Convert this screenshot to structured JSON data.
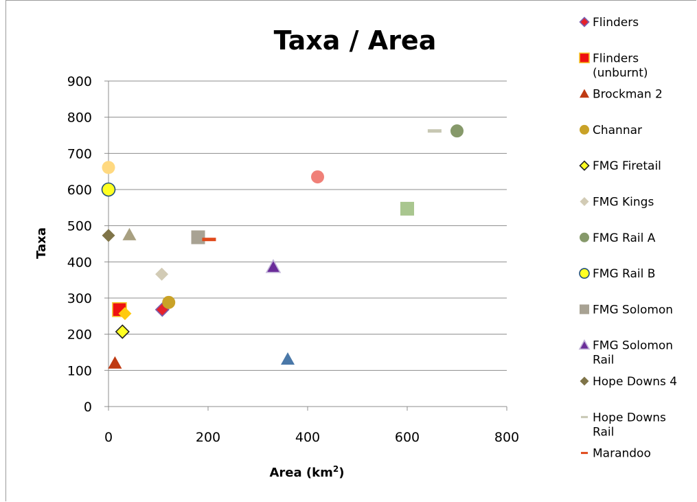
{
  "chart_data": {
    "type": "scatter",
    "title": "Taxa / Area",
    "xlabel": "Area (km",
    "xlabel_sup": "2",
    "xlabel_end": ")",
    "ylabel": "Taxa",
    "xlim": [
      0,
      800
    ],
    "ylim": [
      0,
      900
    ],
    "x_ticks": [
      "0",
      "200",
      "400",
      "600",
      "800"
    ],
    "y_ticks": [
      "0",
      "100",
      "200",
      "300",
      "400",
      "500",
      "600",
      "700",
      "800",
      "900"
    ],
    "grid": "horizontal",
    "legend_position": "right",
    "legend_lines": [
      [
        "Flinders"
      ],
      [
        "Flinders",
        "(unburnt)"
      ],
      [
        "Brockman 2"
      ],
      [
        "Channar"
      ],
      [
        "FMG Firetail"
      ],
      [
        "FMG Kings"
      ],
      [
        "FMG Rail A"
      ],
      [
        "FMG Rail B"
      ],
      [
        "FMG Solomon"
      ],
      [
        "FMG Solomon",
        "Rail"
      ],
      [
        "Hope Downs 4"
      ],
      [
        "Hope Downs",
        "Rail"
      ],
      [
        "Marandoo"
      ]
    ],
    "series": [
      {
        "name": "Flinders",
        "marker": "diamond",
        "color": "#e5222b",
        "stroke": "#7a5fb0",
        "points": [
          [
            108,
            268
          ]
        ]
      },
      {
        "name": "Flinders (unburnt)",
        "marker": "square",
        "color": "#ee1111",
        "stroke": "#f5c42a",
        "points": [
          [
            22,
            268
          ]
        ]
      },
      {
        "name": "Brockman 2",
        "marker": "triangle",
        "color": "#bf3a12",
        "stroke": "none",
        "points": [
          [
            13,
            120
          ]
        ]
      },
      {
        "name": "Channar",
        "marker": "circle",
        "color": "#c9a227",
        "stroke": "none",
        "points": [
          [
            121,
            288
          ]
        ]
      },
      {
        "name": "FMG Firetail",
        "marker": "diamond",
        "color": "#ffff22",
        "stroke": "#222222",
        "points": [
          [
            28,
            207
          ]
        ]
      },
      {
        "name": "FMG Kings",
        "marker": "diamond",
        "color": "#d2cbb5",
        "stroke": "none",
        "points": [
          [
            107,
            366
          ]
        ]
      },
      {
        "name": "FMG Rail A",
        "marker": "circle",
        "color": "#86996a",
        "stroke": "none",
        "points": [
          [
            700,
            762
          ]
        ]
      },
      {
        "name": "FMG Rail B",
        "marker": "circle",
        "color": "#ffff22",
        "stroke": "#1f4e79",
        "points": [
          [
            0,
            600
          ]
        ]
      },
      {
        "name": "FMG Solomon",
        "marker": "square",
        "color": "#a8a293",
        "stroke": "none",
        "points": [
          [
            180,
            468
          ]
        ]
      },
      {
        "name": "FMG Solomon Rail",
        "marker": "triangle",
        "color": "#6a2c99",
        "stroke": "#c2b5d8",
        "points": [
          [
            331,
            386
          ]
        ]
      },
      {
        "name": "Hope Downs 4",
        "marker": "diamond",
        "color": "#7f7448",
        "stroke": "none",
        "points": [
          [
            0,
            473
          ]
        ]
      },
      {
        "name": "Hope Downs Rail",
        "marker": "dash",
        "color": "#c7c7b3",
        "stroke": "none",
        "points": [
          [
            655,
            762
          ]
        ]
      },
      {
        "name": "Marandoo",
        "marker": "dash",
        "color": "#e04a1c",
        "stroke": "none",
        "points": [
          [
            202,
            462
          ]
        ]
      },
      {
        "name": "",
        "marker": "circle",
        "color": "#ffd980",
        "stroke": "none",
        "points": [
          [
            0,
            661
          ]
        ]
      },
      {
        "name": "",
        "marker": "circle",
        "color": "#f08078",
        "stroke": "none",
        "points": [
          [
            420,
            635
          ]
        ]
      },
      {
        "name": "",
        "marker": "square",
        "color": "#a9c68f",
        "stroke": "none",
        "points": [
          [
            600,
            547
          ]
        ]
      },
      {
        "name": "",
        "marker": "triangle",
        "color": "#a8a081",
        "stroke": "none",
        "points": [
          [
            42,
            475
          ]
        ]
      },
      {
        "name": "",
        "marker": "diamond",
        "color": "#ffc90e",
        "stroke": "none",
        "points": [
          [
            33,
            257
          ]
        ]
      },
      {
        "name": "",
        "marker": "triangle",
        "color": "#4a78a8",
        "stroke": "none",
        "points": [
          [
            360,
            131
          ]
        ]
      }
    ]
  }
}
